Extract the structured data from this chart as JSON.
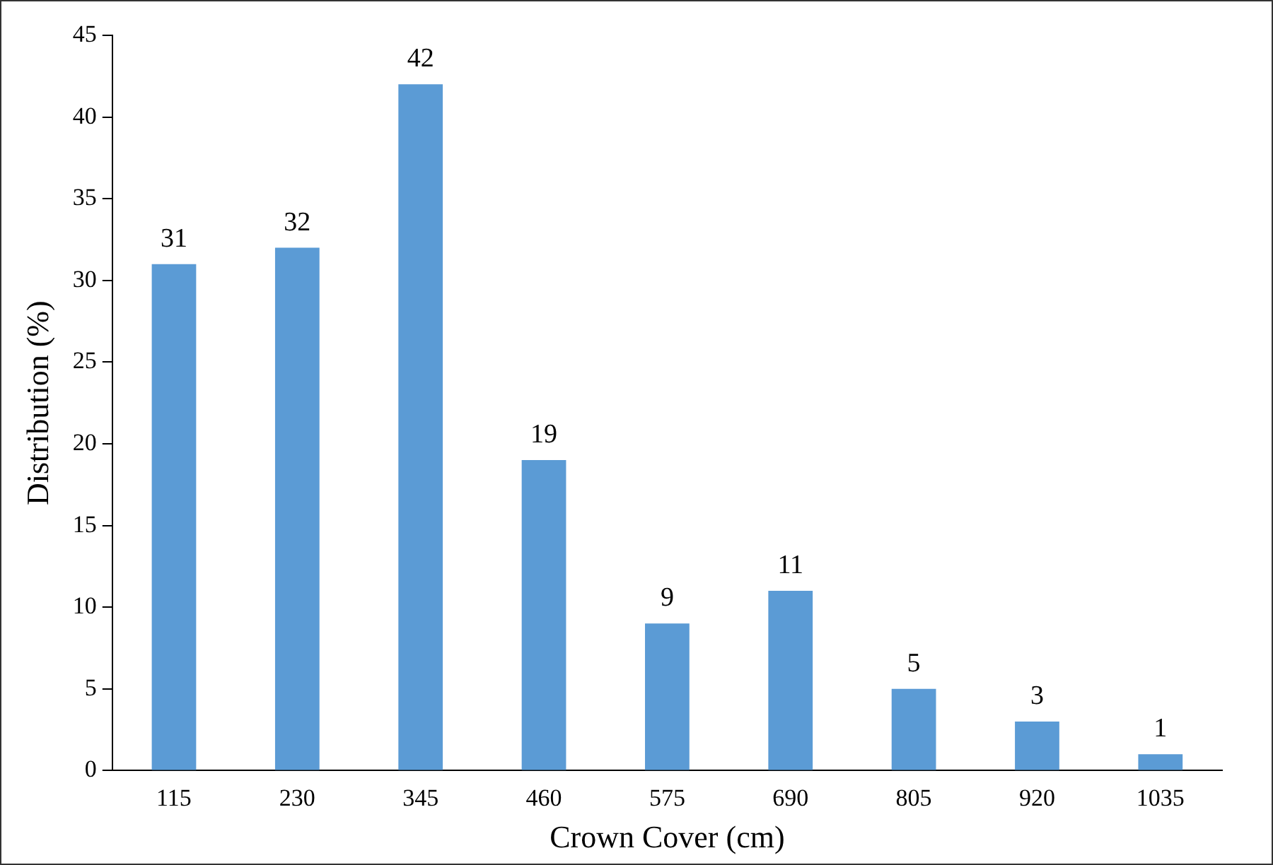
{
  "chart_data": {
    "type": "bar",
    "xlabel": "Crown Cover (cm)",
    "ylabel": "Distribution (%)",
    "categories": [
      "115",
      "230",
      "345",
      "460",
      "575",
      "690",
      "805",
      "920",
      "1035"
    ],
    "values": [
      31,
      32,
      42,
      19,
      9,
      11,
      5,
      3,
      1
    ],
    "color": "#5b9bd5",
    "ylim": [
      0,
      45
    ],
    "yticks": [
      0,
      5,
      10,
      15,
      20,
      25,
      30,
      35,
      40,
      45
    ],
    "grid": false,
    "legend": false,
    "data_labels": true
  }
}
